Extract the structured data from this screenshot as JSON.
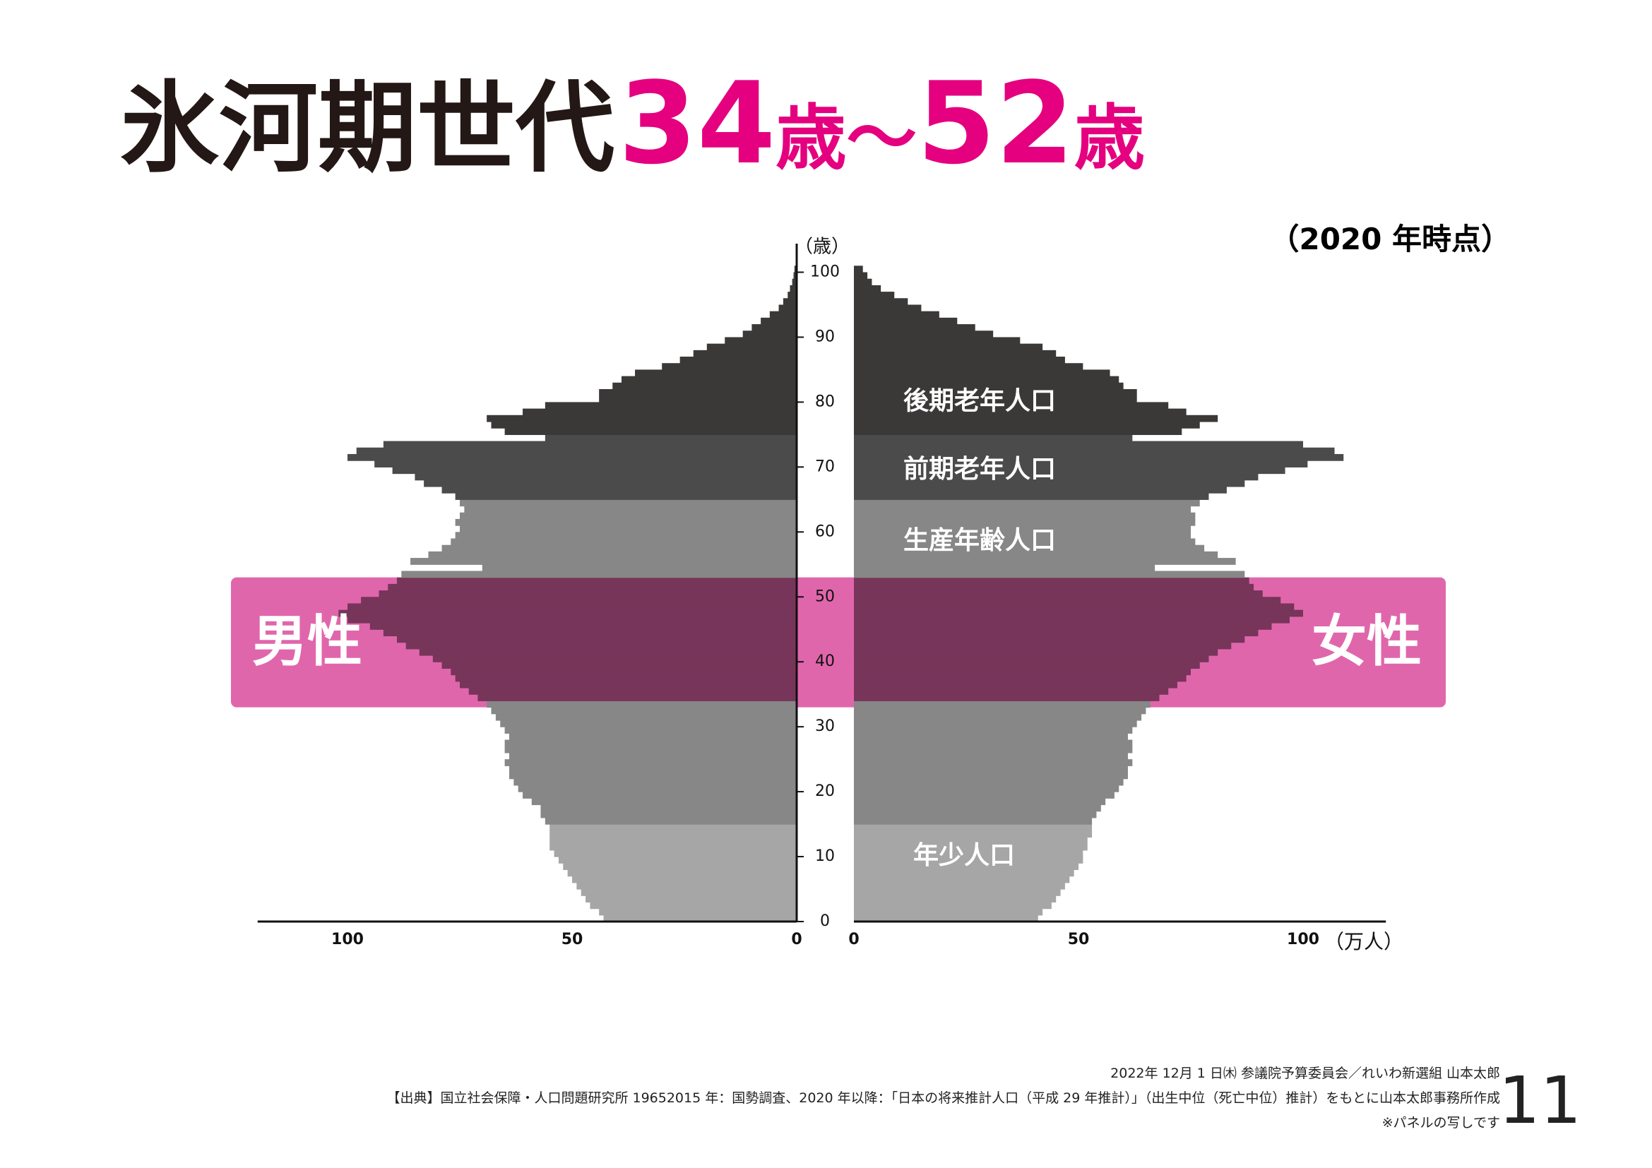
{
  "chart_data": {
    "type": "population-pyramid",
    "title_main": "氷河期世代",
    "title_from": "34",
    "title_unit_1": "歳",
    "title_sep": "～",
    "title_to": "52",
    "title_unit_2": "歳",
    "subtitle": "（2020 年時点）",
    "y_label": "（歳）",
    "x_label": "（万人）",
    "ylim": [
      0,
      100
    ],
    "yticks": [
      0,
      10,
      20,
      30,
      40,
      50,
      60,
      70,
      80,
      90,
      100
    ],
    "xlim": [
      0,
      120
    ],
    "xticks": [
      0,
      50,
      100
    ],
    "ages": [
      0,
      1,
      2,
      3,
      4,
      5,
      6,
      7,
      8,
      9,
      10,
      11,
      12,
      13,
      14,
      15,
      16,
      17,
      18,
      19,
      20,
      21,
      22,
      23,
      24,
      25,
      26,
      27,
      28,
      29,
      30,
      31,
      32,
      33,
      34,
      35,
      36,
      37,
      38,
      39,
      40,
      41,
      42,
      43,
      44,
      45,
      46,
      47,
      48,
      49,
      50,
      51,
      52,
      53,
      54,
      55,
      56,
      57,
      58,
      59,
      60,
      61,
      62,
      63,
      64,
      65,
      66,
      67,
      68,
      69,
      70,
      71,
      72,
      73,
      74,
      75,
      76,
      77,
      78,
      79,
      80,
      81,
      82,
      83,
      84,
      85,
      86,
      87,
      88,
      89,
      90,
      91,
      92,
      93,
      94,
      95,
      96,
      97,
      98,
      99,
      100
    ],
    "series": [
      {
        "name": "男性",
        "values": [
          43,
          44,
          46,
          47,
          48,
          49,
          50,
          51,
          52,
          53,
          54,
          55,
          55,
          55,
          55,
          56,
          57,
          57,
          59,
          61,
          62,
          63,
          64,
          64,
          65,
          64,
          65,
          65,
          64,
          65,
          66,
          67,
          68,
          69,
          71,
          73,
          75,
          76,
          77,
          79,
          81,
          84,
          87,
          89,
          92,
          95,
          100,
          102,
          100,
          97,
          93,
          91,
          89,
          88,
          70,
          86,
          82,
          79,
          77,
          76,
          75,
          76,
          75,
          74,
          75,
          76,
          79,
          83,
          85,
          90,
          94,
          100,
          98,
          92,
          56,
          65,
          68,
          69,
          61,
          56,
          44,
          44,
          41,
          39,
          36,
          30,
          26,
          23,
          20,
          16,
          12,
          10,
          8,
          6,
          4,
          3,
          2,
          1.5,
          1,
          0.7,
          0.5
        ]
      },
      {
        "name": "女性",
        "values": [
          41,
          42,
          44,
          45,
          46,
          47,
          48,
          49,
          50,
          51,
          51,
          52,
          52,
          53,
          53,
          53,
          54,
          55,
          56,
          58,
          59,
          60,
          61,
          61,
          62,
          61,
          62,
          62,
          61,
          62,
          63,
          64,
          65,
          66,
          68,
          70,
          72,
          74,
          75,
          77,
          79,
          81,
          84,
          87,
          90,
          93,
          97,
          100,
          98,
          95,
          91,
          89,
          88,
          87,
          67,
          85,
          81,
          78,
          76,
          75,
          75,
          76,
          76,
          75,
          77,
          79,
          83,
          87,
          90,
          96,
          101,
          109,
          107,
          100,
          62,
          73,
          77,
          81,
          74,
          70,
          63,
          63,
          60,
          59,
          57,
          51,
          47,
          45,
          42,
          37,
          31,
          27,
          23,
          19,
          15,
          12,
          9,
          6,
          4,
          3,
          2
        ]
      }
    ],
    "age_groups": [
      {
        "label": "年少人口",
        "min_age": 0,
        "max_age": 14,
        "color": "#a6a6a6"
      },
      {
        "label": "生産年齢人口",
        "min_age": 15,
        "max_age": 64,
        "color": "#878787"
      },
      {
        "label": "前期老年人口",
        "min_age": 65,
        "max_age": 74,
        "color": "#4b4b4b"
      },
      {
        "label": "後期老年人口",
        "min_age": 75,
        "max_age": 100,
        "color": "#3b3838"
      }
    ],
    "highlight": {
      "from": 34,
      "to": 52,
      "color": "#e066ac",
      "bar_color": "#77355a"
    },
    "title_color": "#e4007f"
  },
  "footer": {
    "line1": "2022年 12月 1 日㈭ 参議院予算委員会／れいわ新選組 山本太郎",
    "line2": "【出典】国立社会保障・人口問題研究所 19652015 年：国勢調査、2020 年以降：「日本の将来推計人口（平成 29 年推計）」（出生中位（死亡中位）推計）をもとに山本太郎事務所作成",
    "line3": "※パネルの写しです",
    "page": "11"
  }
}
